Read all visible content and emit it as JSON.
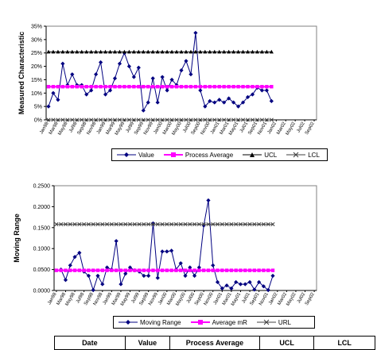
{
  "chart_data": [
    {
      "type": "line",
      "ylabel": "Measured Characteristic",
      "ylim": [
        0,
        35
      ],
      "y_ticks": [
        "0%",
        "5%",
        "10%",
        "15%",
        "20%",
        "25%",
        "30%",
        "35%"
      ],
      "y_tick_values": [
        0,
        5,
        10,
        15,
        20,
        25,
        30,
        35
      ],
      "x_tick_labels": [
        "Jan98",
        "Mar98",
        "May98",
        "Jul98",
        "Sep98",
        "Nov98",
        "Jan99",
        "Mar99",
        "May99",
        "Jul99",
        "Sep99",
        "Nov99",
        "Jan00",
        "Mar00",
        "May00",
        "Jul00",
        "Sep00",
        "Nov00",
        "Jan01",
        "Mar01",
        "May01",
        "Jul01",
        "Sep01",
        "Nov01",
        "Jan02",
        "Mar02",
        "May02",
        "Jul02",
        "Sep02"
      ],
      "series": [
        {
          "name": "Value",
          "color": "#000080",
          "marker": "diamond",
          "values": [
            5,
            10,
            7.5,
            21,
            13,
            17,
            13,
            13,
            9.5,
            11,
            17,
            21.5,
            9.5,
            11,
            15.5,
            21,
            25,
            20,
            16,
            19.5,
            3.5,
            6.5,
            15.5,
            6.5,
            16,
            11,
            15,
            13,
            18.5,
            22,
            17,
            32.5,
            11,
            5,
            7,
            6.5,
            7.5,
            6.5,
            8,
            6.5,
            5,
            6.5,
            8.5,
            9.5,
            12,
            11,
            11,
            7
          ]
        },
        {
          "name": "Process Average",
          "color": "#ff00ff",
          "marker": "square",
          "constant": 12.4
        },
        {
          "name": "UCL",
          "color": "#000000",
          "marker": "triangle",
          "constant": 25.4
        },
        {
          "name": "LCL",
          "color": "#404040",
          "marker": "x",
          "constant": 0
        }
      ]
    },
    {
      "type": "line",
      "ylabel": "Moving Range",
      "ylim": [
        0,
        0.25
      ],
      "y_ticks": [
        "0.0000",
        "0.0500",
        "0.1000",
        "0.1500",
        "0.2000",
        "0.2500"
      ],
      "y_tick_values": [
        0,
        0.05,
        0.1,
        0.15,
        0.2,
        0.25
      ],
      "x_tick_labels": [
        "Jan98",
        "Mar98",
        "May98",
        "Jul98",
        "Sep98",
        "Nov98",
        "Jan99",
        "Mar99",
        "May99",
        "Jul99",
        "Sep99",
        "Nov99",
        "Jan00",
        "Mar00",
        "May00",
        "Jul00",
        "Sep00",
        "Nov00",
        "Jan01",
        "Mar01",
        "May01",
        "Jul01",
        "Sep01",
        "Nov01",
        "Jan02",
        "Mar02",
        "May02",
        "Jul02",
        "Sep02"
      ],
      "series": [
        {
          "name": "Moving Range",
          "color": "#000080",
          "marker": "diamond",
          "values": [
            null,
            0.05,
            0.025,
            0.06,
            0.08,
            0.09,
            0.045,
            0.035,
            0.001,
            0.035,
            0.015,
            0.055,
            0.05,
            0.118,
            0.015,
            0.04,
            0.055,
            0.048,
            0.045,
            0.035,
            0.035,
            0.16,
            0.03,
            0.093,
            0.093,
            0.095,
            0.05,
            0.065,
            0.035,
            0.055,
            0.035,
            0.055,
            0.155,
            0.215,
            0.06,
            0.02,
            0.005,
            0.012,
            0.005,
            0.02,
            0.015,
            0.015,
            0.02,
            0.002,
            0.02,
            0.01,
            0.001,
            0.035
          ]
        },
        {
          "name": "Average mR",
          "color": "#ff00ff",
          "marker": "square",
          "constant": 0.048
        },
        {
          "name": "URL",
          "color": "#404040",
          "marker": "x",
          "constant": 0.158
        }
      ]
    }
  ],
  "table": {
    "headers": [
      "Date",
      "Value",
      "Process Average",
      "UCL",
      "LCL"
    ]
  }
}
